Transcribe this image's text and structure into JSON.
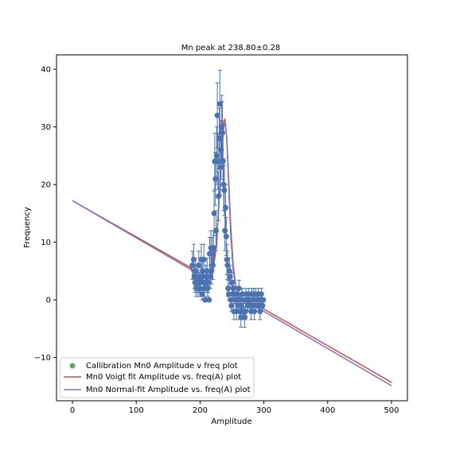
{
  "chart_data": {
    "type": "scatter",
    "title": "Mn peak at 238.80±0.28",
    "xlabel": "Amplitude",
    "ylabel": "Frequency",
    "xlim": [
      -25,
      525
    ],
    "ylim": [
      -17.5,
      42.5
    ],
    "xticks": [
      0,
      100,
      200,
      300,
      400,
      500
    ],
    "yticks": [
      -10,
      0,
      10,
      20,
      30,
      40
    ],
    "grid": false,
    "legend_position": "lower-left",
    "legend": [
      "Callibration Mn0 Amplitude v freq plot",
      "Mn0 Voigt fit Amplitude vs. freq(A) plot",
      "Mn0 Normal-fit Amplitude vs. freq(A) plot"
    ],
    "colors": {
      "points": "#4c72b0",
      "errorbars": "#4c72b0",
      "legend_marker": "#55a868",
      "voigt": "#c44e52",
      "normal": "#8172b2"
    },
    "series": [
      {
        "name": "Callibration Mn0 Amplitude v freq plot",
        "kind": "points_with_errorbars",
        "x": [
          188,
          190,
          191,
          192,
          193,
          194,
          195,
          196,
          197,
          198,
          199,
          200,
          201,
          202,
          203,
          204,
          205,
          206,
          207,
          208,
          209,
          210,
          211,
          212,
          213,
          214,
          215,
          216,
          217,
          218,
          219,
          220,
          221,
          222,
          223,
          224,
          225,
          226,
          227,
          228,
          229,
          230,
          231,
          232,
          233,
          234,
          235,
          236,
          237,
          238,
          239,
          240,
          241,
          242,
          243,
          244,
          245,
          246,
          247,
          248,
          249,
          250,
          251,
          252,
          253,
          254,
          255,
          256,
          257,
          258,
          259,
          260,
          261,
          262,
          263,
          264,
          265,
          266,
          267,
          268,
          269,
          270,
          271,
          272,
          273,
          274,
          275,
          276,
          277,
          278,
          279,
          280,
          281,
          282,
          283,
          284,
          285,
          286,
          287,
          288,
          289,
          290,
          291,
          292,
          293,
          294,
          295,
          296,
          297,
          298,
          299
        ],
        "y": [
          6,
          7,
          4,
          3,
          5,
          2,
          4,
          3,
          2,
          6,
          3,
          2,
          4,
          7,
          1,
          5,
          3,
          7,
          2,
          0,
          4,
          3,
          5,
          2,
          3,
          0,
          8,
          4,
          9,
          5,
          8,
          6,
          9,
          15,
          24,
          21,
          12,
          25,
          32,
          24,
          18,
          28,
          34,
          23,
          26,
          30,
          29,
          24,
          20,
          19,
          12,
          16,
          11,
          7,
          6,
          2,
          1,
          5,
          4,
          0,
          -1,
          3,
          1,
          2,
          -2,
          0,
          1,
          0,
          -2,
          1,
          -1,
          0,
          2,
          -2,
          0,
          -3,
          -1,
          1,
          -2,
          -2,
          0,
          -3,
          -2,
          1,
          0,
          0,
          -1,
          1,
          0,
          -1,
          0,
          -2,
          1,
          -1,
          0,
          1,
          -2,
          0,
          1,
          -1,
          0,
          0,
          1,
          -1,
          0,
          -2,
          0,
          1,
          0,
          -1,
          0
        ],
        "yerr": "sqrt(y)"
      },
      {
        "name": "Mn0 Voigt fit Amplitude vs. freq(A) plot",
        "kind": "line",
        "x": [
          0,
          185,
          195,
          210,
          220,
          226,
          229,
          232,
          235,
          237,
          238.8,
          240,
          242,
          245,
          248,
          252,
          256,
          260,
          265,
          270,
          275,
          285,
          300,
          500
        ],
        "y": [
          17.2,
          5.6,
          4.0,
          2.9,
          4.9,
          9.5,
          15.8,
          22.5,
          28.6,
          31.0,
          31.3,
          30.4,
          27.5,
          19.5,
          11.5,
          5.2,
          2.2,
          0.9,
          0.2,
          0.0,
          -0.4,
          -0.9,
          -1.6,
          -14.3
        ]
      },
      {
        "name": "Mn0 Normal-fit Amplitude vs. freq(A) plot",
        "kind": "line",
        "x": [
          0,
          185,
          195,
          210,
          220,
          226,
          229,
          232,
          235,
          237,
          238.8,
          240,
          242,
          245,
          248,
          252,
          256,
          260,
          265,
          270,
          275,
          285,
          300,
          500
        ],
        "y": [
          17.2,
          5.3,
          3.9,
          3.2,
          5.8,
          10.4,
          16.0,
          21.9,
          27.3,
          29.9,
          30.6,
          30.1,
          27.6,
          20.6,
          13.1,
          6.0,
          2.5,
          0.8,
          0.1,
          -0.2,
          -0.6,
          -1.1,
          -2.0,
          -14.9
        ]
      }
    ]
  }
}
